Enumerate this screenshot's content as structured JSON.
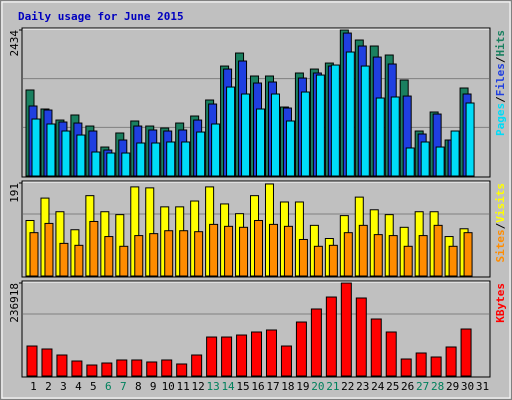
{
  "chart_data": [
    {
      "type": "bar",
      "title": "Daily usage for June 2015",
      "categories": [
        "1",
        "2",
        "3",
        "4",
        "5",
        "6",
        "7",
        "8",
        "9",
        "10",
        "11",
        "12",
        "13",
        "14",
        "15",
        "16",
        "17",
        "18",
        "19",
        "20",
        "21",
        "22",
        "23",
        "24",
        "25",
        "26",
        "27",
        "28",
        "29",
        "30",
        "31"
      ],
      "category_colors": [
        "#000000",
        "#000000",
        "#000000",
        "#000000",
        "#000000",
        "#00805c",
        "#00805c",
        "#000000",
        "#000000",
        "#000000",
        "#000000",
        "#000000",
        "#00805c",
        "#00805c",
        "#000000",
        "#000000",
        "#000000",
        "#000000",
        "#000000",
        "#00805c",
        "#00805c",
        "#000000",
        "#000000",
        "#000000",
        "#000000",
        "#000000",
        "#00805c",
        "#00805c",
        "#000000",
        "#000000",
        "#000000"
      ],
      "legend_separator": "/",
      "ylim": [
        0,
        2434
      ],
      "yticks": [
        2434
      ],
      "series": [
        {
          "name": "Hits",
          "color": "#1a8060",
          "values": [
            1434,
            1117,
            933,
            1017,
            833,
            483,
            717,
            917,
            833,
            800,
            883,
            1000,
            1267,
            1833,
            2050,
            1667,
            1667,
            1150,
            1717,
            1783,
            1883,
            2434,
            2267,
            2167,
            2017,
            1600,
            750,
            1067,
            600,
            1467,
            null
          ]
        },
        {
          "name": "Files",
          "color": "#1f3fe0",
          "values": [
            1167,
            1100,
            900,
            883,
            750,
            433,
            600,
            833,
            767,
            750,
            767,
            933,
            1200,
            1783,
            1917,
            1550,
            1567,
            1133,
            1633,
            1717,
            1833,
            2383,
            2167,
            1983,
            1867,
            1333,
            700,
            1033,
            600,
            1367,
            null
          ]
        },
        {
          "name": "Pages",
          "color": "#00dcf8",
          "values": [
            950,
            867,
            750,
            683,
            400,
            383,
            383,
            550,
            550,
            567,
            567,
            733,
            867,
            1483,
            1367,
            1117,
            1367,
            917,
            1400,
            1683,
            1850,
            2067,
            1833,
            1300,
            1317,
            467,
            567,
            483,
            750,
            1217,
            null
          ]
        }
      ]
    },
    {
      "type": "bar",
      "ylim": [
        0,
        191
      ],
      "yticks": [
        191
      ],
      "series": [
        {
          "name": "Visits",
          "color": "#ffff00",
          "values": [
            114,
            160,
            132,
            95,
            165,
            132,
            126,
            183,
            181,
            142,
            142,
            154,
            183,
            148,
            128,
            165,
            189,
            152,
            152,
            104,
            77,
            124,
            162,
            136,
            126,
            100,
            132,
            132,
            81,
            97,
            null
          ]
        },
        {
          "name": "Sites",
          "color": "#ff8c00",
          "values": [
            89,
            108,
            67,
            63,
            112,
            81,
            61,
            83,
            87,
            93,
            93,
            91,
            106,
            102,
            100,
            114,
            106,
            102,
            75,
            61,
            63,
            89,
            104,
            85,
            83,
            61,
            83,
            104,
            61,
            89,
            null
          ]
        }
      ]
    },
    {
      "type": "bar",
      "ylim": [
        0,
        236918
      ],
      "yticks": [
        236918
      ],
      "series": [
        {
          "name": "KBytes",
          "color": "#ff0000",
          "values": [
            76400,
            68800,
            53500,
            38200,
            28000,
            33100,
            40800,
            40800,
            35700,
            40800,
            30600,
            53500,
            99300,
            99300,
            104400,
            112100,
            117200,
            76400,
            137500,
            170700,
            201200,
            236918,
            198700,
            145200,
            112100,
            43300,
            58600,
            48400,
            73900,
            119700,
            null
          ]
        }
      ]
    }
  ]
}
